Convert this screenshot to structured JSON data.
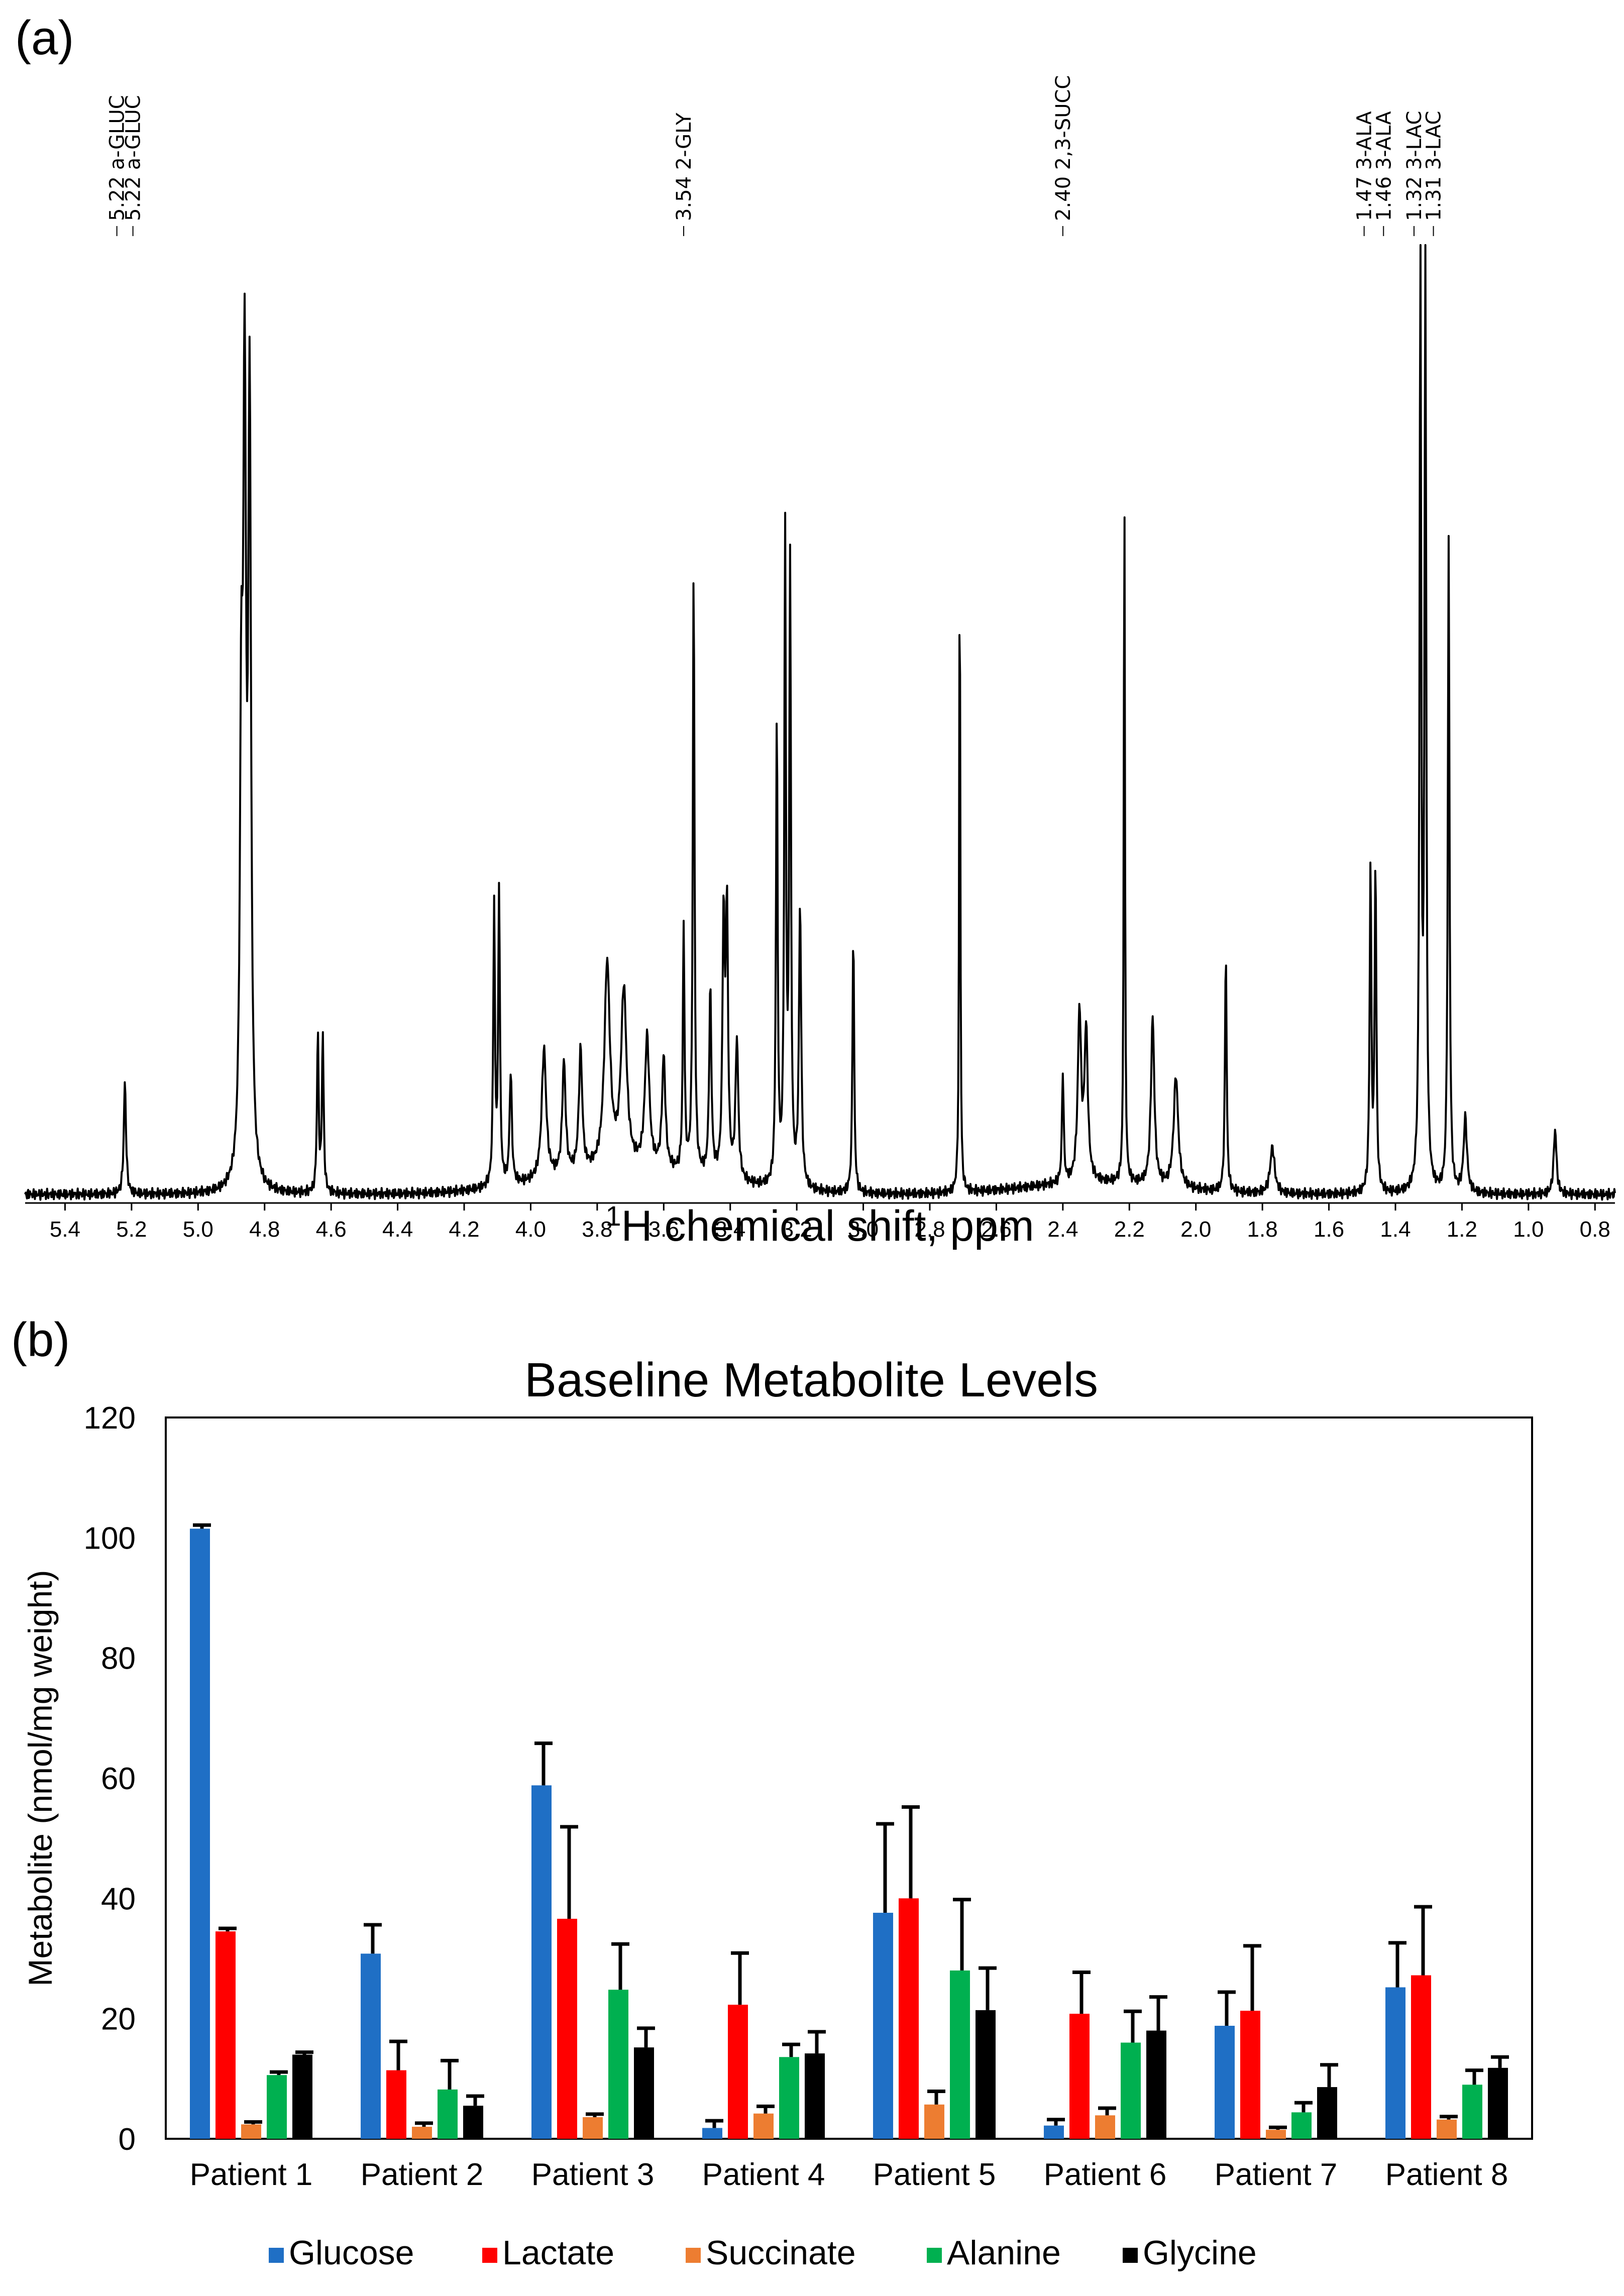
{
  "chart_data": [
    {
      "panel": "(a)",
      "type": "line",
      "title": "",
      "xlabel_sup": "1",
      "xlabel": "H chemical shift, ppm",
      "xlim": [
        5.52,
        0.74
      ],
      "xticks": [
        "5.4",
        "5.2",
        "5.0",
        "4.8",
        "4.6",
        "4.4",
        "4.2",
        "4.0",
        "3.8",
        "3.6",
        "3.4",
        "3.2",
        "3.0",
        "2.8",
        "2.6",
        "2.4",
        "2.2",
        "2.0",
        "1.8",
        "1.6",
        "1.4",
        "1.2",
        "1.0",
        "0.8"
      ],
      "peak_labels": [
        {
          "ppm": 5.22,
          "text": "5.22 a-GLUC"
        },
        {
          "ppm": 5.22,
          "text": "5.22 a-GLUC"
        },
        {
          "ppm": 3.54,
          "text": "3.54 2-GLY"
        },
        {
          "ppm": 2.4,
          "text": "2.40 2,3-SUCC"
        },
        {
          "ppm": 1.47,
          "text": "1.47 3-ALA"
        },
        {
          "ppm": 1.46,
          "text": "1.46 3-ALA"
        },
        {
          "ppm": 1.32,
          "text": "1.32 3-LAC"
        },
        {
          "ppm": 1.31,
          "text": "1.31 3-LAC"
        }
      ],
      "peaks": [
        {
          "ppm": 5.22,
          "height": 0.12,
          "width": 0.004
        },
        {
          "ppm": 4.87,
          "height": 0.45,
          "width": 0.005
        },
        {
          "ppm": 4.86,
          "height": 0.8,
          "width": 0.005
        },
        {
          "ppm": 4.845,
          "height": 0.82,
          "width": 0.005
        },
        {
          "ppm": 4.64,
          "height": 0.17,
          "width": 0.003
        },
        {
          "ppm": 4.625,
          "height": 0.17,
          "width": 0.003
        },
        {
          "ppm": 4.11,
          "height": 0.3,
          "width": 0.003
        },
        {
          "ppm": 4.095,
          "height": 0.32,
          "width": 0.003
        },
        {
          "ppm": 4.06,
          "height": 0.12,
          "width": 0.004
        },
        {
          "ppm": 3.96,
          "height": 0.14,
          "width": 0.008
        },
        {
          "ppm": 3.9,
          "height": 0.12,
          "width": 0.006
        },
        {
          "ppm": 3.85,
          "height": 0.13,
          "width": 0.006
        },
        {
          "ppm": 3.77,
          "height": 0.22,
          "width": 0.01
        },
        {
          "ppm": 3.72,
          "height": 0.19,
          "width": 0.01
        },
        {
          "ppm": 3.65,
          "height": 0.14,
          "width": 0.008
        },
        {
          "ppm": 3.6,
          "height": 0.12,
          "width": 0.006
        },
        {
          "ppm": 3.54,
          "height": 0.26,
          "width": 0.003
        },
        {
          "ppm": 3.51,
          "height": 0.65,
          "width": 0.003
        },
        {
          "ppm": 3.46,
          "height": 0.2,
          "width": 0.004
        },
        {
          "ppm": 3.42,
          "height": 0.27,
          "width": 0.004
        },
        {
          "ppm": 3.41,
          "height": 0.28,
          "width": 0.004
        },
        {
          "ppm": 3.38,
          "height": 0.15,
          "width": 0.005
        },
        {
          "ppm": 3.26,
          "height": 0.5,
          "width": 0.003
        },
        {
          "ppm": 3.235,
          "height": 0.69,
          "width": 0.003
        },
        {
          "ppm": 3.22,
          "height": 0.66,
          "width": 0.003
        },
        {
          "ppm": 3.19,
          "height": 0.3,
          "width": 0.004
        },
        {
          "ppm": 3.03,
          "height": 0.28,
          "width": 0.003
        },
        {
          "ppm": 2.71,
          "height": 0.7,
          "width": 0.002
        },
        {
          "ppm": 2.4,
          "height": 0.12,
          "width": 0.003
        },
        {
          "ppm": 2.35,
          "height": 0.18,
          "width": 0.006
        },
        {
          "ppm": 2.33,
          "height": 0.16,
          "width": 0.006
        },
        {
          "ppm": 2.215,
          "height": 0.77,
          "width": 0.002
        },
        {
          "ppm": 2.13,
          "height": 0.18,
          "width": 0.006
        },
        {
          "ppm": 2.06,
          "height": 0.12,
          "width": 0.008
        },
        {
          "ppm": 1.91,
          "height": 0.26,
          "width": 0.003
        },
        {
          "ppm": 1.77,
          "height": 0.05,
          "width": 0.008
        },
        {
          "ppm": 1.475,
          "height": 0.35,
          "width": 0.003
        },
        {
          "ppm": 1.46,
          "height": 0.35,
          "width": 0.003
        },
        {
          "ppm": 1.325,
          "height": 1.0,
          "width": 0.003
        },
        {
          "ppm": 1.31,
          "height": 1.0,
          "width": 0.003
        },
        {
          "ppm": 1.24,
          "height": 0.7,
          "width": 0.003
        },
        {
          "ppm": 1.19,
          "height": 0.08,
          "width": 0.006
        },
        {
          "ppm": 0.92,
          "height": 0.07,
          "width": 0.005
        }
      ]
    },
    {
      "panel": "(b)",
      "type": "bar",
      "title": "Baseline Metabolite Levels",
      "xlabel": "",
      "ylabel": "Metabolite (nmol/mg weight)",
      "ylim": [
        0,
        120
      ],
      "yticks": [
        "0",
        "20",
        "40",
        "60",
        "80",
        "100",
        "120"
      ],
      "categories": [
        "Patient 1",
        "Patient 2",
        "Patient 3",
        "Patient 4",
        "Patient 5",
        "Patient 6",
        "Patient 7",
        "Patient 8"
      ],
      "series": [
        {
          "name": "Glucose",
          "color": "#1f6fc5",
          "values": [
            101.5,
            30.8,
            58.8,
            1.8,
            37.6,
            2.2,
            18.8,
            25.2
          ],
          "errors": [
            0.6,
            4.8,
            7.0,
            1.2,
            14.8,
            1.0,
            5.6,
            7.4
          ]
        },
        {
          "name": "Lactate",
          "color": "#ff0000",
          "values": [
            34.5,
            11.4,
            36.6,
            22.3,
            40.0,
            20.8,
            21.3,
            27.2
          ],
          "errors": [
            0.5,
            4.8,
            15.3,
            8.6,
            15.2,
            6.9,
            10.8,
            11.4
          ]
        },
        {
          "name": "Succinate",
          "color": "#ed7d31",
          "values": [
            2.4,
            2.0,
            3.6,
            4.2,
            5.7,
            3.9,
            1.5,
            3.2
          ],
          "errors": [
            0.4,
            0.6,
            0.5,
            1.2,
            2.2,
            1.2,
            0.4,
            0.5
          ]
        },
        {
          "name": "Alanine",
          "color": "#00b050",
          "values": [
            10.6,
            8.2,
            24.8,
            13.6,
            28.0,
            16.0,
            4.4,
            9.0
          ],
          "errors": [
            0.5,
            4.8,
            7.6,
            2.1,
            11.8,
            5.2,
            1.6,
            2.4
          ]
        },
        {
          "name": "Glycine",
          "color": "#000000",
          "values": [
            14.0,
            5.5,
            15.2,
            14.2,
            21.4,
            18.0,
            8.6,
            11.8
          ],
          "errors": [
            0.4,
            1.6,
            3.2,
            3.6,
            7.0,
            5.6,
            3.7,
            1.8
          ]
        }
      ],
      "legend": [
        "Glucose",
        "Lactate",
        "Succinate",
        "Alanine",
        "Glycine"
      ]
    }
  ]
}
